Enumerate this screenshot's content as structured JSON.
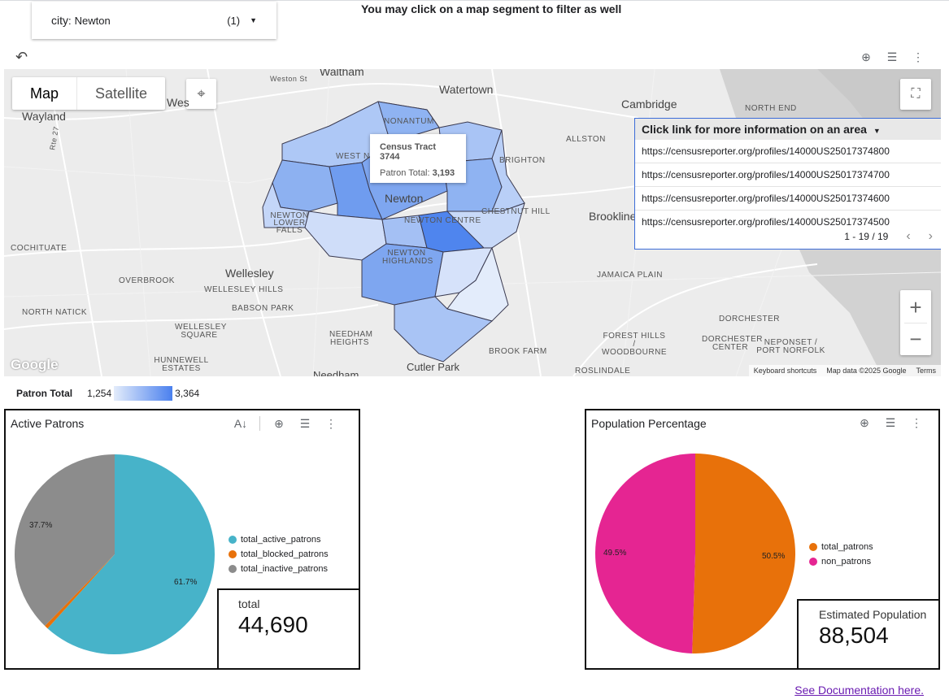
{
  "filter": {
    "key": "city",
    "value": "Newton",
    "count": "(1)"
  },
  "headline": "You may click on a map segment to filter as well",
  "map": {
    "type_map": "Map",
    "type_satellite": "Satellite",
    "places": {
      "waltham": "Waltham",
      "watertown": "Watertown",
      "cambridge": "Cambridge",
      "wayland": "Wayland",
      "weston_st": "Weston St",
      "west": "Wes",
      "north_end": "NORTH END",
      "allston": "ALLSTON",
      "brighton": "BRIGHTON",
      "newton": "Newton",
      "west_newton": "WEST NE",
      "nonantum": "NONANTUM",
      "newton_lower_falls": "NEWTON LOWER FALLS",
      "newton_centre": "NEWTON CENTRE",
      "chestnut_hill": "CHESTNUT HILL",
      "brookline": "Brookline",
      "cochituate": "COCHITUATE",
      "wellesley": "Wellesley",
      "newton_highlands": "NEWTON HIGHLANDS",
      "overbrook": "OVERBROOK",
      "wellesley_hills": "WELLESLEY HILLS",
      "jamaica_plain": "JAMAICA PLAIN",
      "north_natick": "NORTH NATICK",
      "babson_park": "BABSON PARK",
      "dorchester": "DORCHESTER",
      "wellesley_square": "WELLESLEY SQUARE",
      "needham_heights": "NEEDHAM HEIGHTS",
      "forest_hills": "FOREST HILLS / WOODBOURNE",
      "dorchester_center": "DORCHESTER CENTER",
      "neponset": "NEPONSET / PORT NORFOLK",
      "hunnewell": "HUNNEWELL ESTATES",
      "brook_farm": "BROOK FARM",
      "cutler_park": "Cutler Park",
      "roslindale": "ROSLINDALE",
      "route27": "Rte 27",
      "needham": "Needham"
    },
    "tooltip": {
      "title": "Census Tract 3744",
      "label": "Patron Total:",
      "value": "3,193"
    },
    "info_table": {
      "header": "Click link for more information on an area",
      "rows": [
        "https://censusreporter.org/profiles/14000US25017374800",
        "https://censusreporter.org/profiles/14000US25017374700",
        "https://censusreporter.org/profiles/14000US25017374600",
        "https://censusreporter.org/profiles/14000US25017374500"
      ],
      "pagination": "1 - 19 / 19"
    },
    "attribution": {
      "shortcuts": "Keyboard shortcuts",
      "data": "Map data ©2025 Google",
      "terms": "Terms"
    },
    "logo": "Google",
    "zoom_in": "+",
    "zoom_out": "−"
  },
  "legend": {
    "label": "Patron Total",
    "min": "1,254",
    "max": "3,364",
    "colors": [
      "#e3ecfb",
      "#4a80ee"
    ]
  },
  "active_patrons": {
    "title": "Active Patrons",
    "legend": [
      "total_active_patrons",
      "total_blocked_patrons",
      "total_inactive_patrons"
    ],
    "labels": {
      "active": "61.7%",
      "inactive": "37.7%"
    },
    "kpi_label": "total",
    "kpi_value": "44,690"
  },
  "population": {
    "title": "Population Percentage",
    "legend": [
      "total_patrons",
      "non_patrons"
    ],
    "labels": {
      "patrons": "50.5%",
      "non_patrons": "49.5%"
    },
    "kpi_label": "Estimated Population",
    "kpi_value": "88,504"
  },
  "chart_data": [
    {
      "type": "pie",
      "title": "Active Patrons",
      "categories": [
        "total_active_patrons",
        "total_blocked_patrons",
        "total_inactive_patrons"
      ],
      "values": [
        61.7,
        0.6,
        37.7
      ],
      "colors": [
        "#47b3c9",
        "#e8710a",
        "#8c8c8c"
      ]
    },
    {
      "type": "pie",
      "title": "Population Percentage",
      "categories": [
        "total_patrons",
        "non_patrons"
      ],
      "values": [
        50.5,
        49.5
      ],
      "colors": [
        "#e8710a",
        "#e52592"
      ]
    }
  ],
  "doc_link": "See Documentation here."
}
